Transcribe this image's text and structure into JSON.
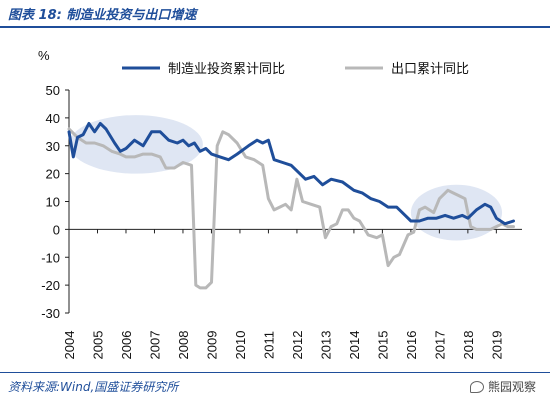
{
  "header": {
    "figure_title": "图表 18:  制造业投资与出口增速"
  },
  "footer": {
    "source": "资料来源:Wind,国盛证券研究所",
    "watermark": "熊园观察",
    "watermark_icon": "wechat-icon"
  },
  "chart_data": {
    "type": "line",
    "title": "",
    "xlabel": "",
    "ylabel": "%",
    "xlim": [
      2004.0,
      2019.9
    ],
    "ylim": [
      -30,
      50
    ],
    "y_ticks": [
      50,
      40,
      30,
      20,
      10,
      0,
      -10,
      -20,
      -30
    ],
    "x_ticks": [
      "2004",
      "2005",
      "2006",
      "2007",
      "2008",
      "2009",
      "2010",
      "2011",
      "2012",
      "2013",
      "2014",
      "2015",
      "2016",
      "2017",
      "2018",
      "2019"
    ],
    "grid": false,
    "legend_position": "top",
    "highlights": [
      {
        "x_range": [
          2004.0,
          2008.7
        ],
        "y_range": [
          20,
          41
        ]
      },
      {
        "x_range": [
          2016.0,
          2019.2
        ],
        "y_range": [
          -4,
          16
        ]
      }
    ],
    "series": [
      {
        "name": "制造业投资累计同比",
        "color": "#1f4e9a",
        "points": [
          [
            2004.0,
            35
          ],
          [
            2004.15,
            26
          ],
          [
            2004.3,
            33
          ],
          [
            2004.5,
            34
          ],
          [
            2004.7,
            38
          ],
          [
            2004.9,
            35
          ],
          [
            2005.1,
            38
          ],
          [
            2005.3,
            36
          ],
          [
            2005.6,
            31
          ],
          [
            2005.8,
            28
          ],
          [
            2006.0,
            29
          ],
          [
            2006.3,
            32
          ],
          [
            2006.6,
            30
          ],
          [
            2006.9,
            35
          ],
          [
            2007.2,
            35
          ],
          [
            2007.5,
            32
          ],
          [
            2007.8,
            31
          ],
          [
            2008.0,
            32
          ],
          [
            2008.2,
            30
          ],
          [
            2008.4,
            31
          ],
          [
            2008.6,
            28
          ],
          [
            2008.8,
            29
          ],
          [
            2009.0,
            27
          ],
          [
            2009.3,
            26
          ],
          [
            2009.6,
            25
          ],
          [
            2009.9,
            27
          ],
          [
            2010.3,
            30
          ],
          [
            2010.6,
            32
          ],
          [
            2010.8,
            31
          ],
          [
            2011.0,
            32
          ],
          [
            2011.2,
            25
          ],
          [
            2011.5,
            24
          ],
          [
            2011.8,
            23
          ],
          [
            2012.0,
            21
          ],
          [
            2012.3,
            18
          ],
          [
            2012.6,
            19
          ],
          [
            2012.9,
            16
          ],
          [
            2013.2,
            18
          ],
          [
            2013.6,
            17
          ],
          [
            2014.0,
            14
          ],
          [
            2014.3,
            13
          ],
          [
            2014.6,
            11
          ],
          [
            2014.9,
            10
          ],
          [
            2015.2,
            8
          ],
          [
            2015.5,
            8
          ],
          [
            2015.8,
            5
          ],
          [
            2016.0,
            3
          ],
          [
            2016.3,
            3
          ],
          [
            2016.6,
            4
          ],
          [
            2016.9,
            4
          ],
          [
            2017.2,
            5
          ],
          [
            2017.5,
            4
          ],
          [
            2017.8,
            5
          ],
          [
            2018.0,
            4
          ],
          [
            2018.3,
            7
          ],
          [
            2018.6,
            9
          ],
          [
            2018.8,
            8
          ],
          [
            2019.0,
            4
          ],
          [
            2019.3,
            2
          ],
          [
            2019.6,
            3
          ]
        ]
      },
      {
        "name": "出口累计同比",
        "color": "#b8b8b8",
        "points": [
          [
            2004.0,
            36
          ],
          [
            2004.3,
            33
          ],
          [
            2004.6,
            31
          ],
          [
            2004.9,
            31
          ],
          [
            2005.2,
            30
          ],
          [
            2005.5,
            28
          ],
          [
            2005.8,
            27
          ],
          [
            2006.0,
            26
          ],
          [
            2006.3,
            26
          ],
          [
            2006.6,
            27
          ],
          [
            2006.9,
            27
          ],
          [
            2007.2,
            26
          ],
          [
            2007.4,
            22
          ],
          [
            2007.7,
            22
          ],
          [
            2008.0,
            24
          ],
          [
            2008.3,
            23
          ],
          [
            2008.45,
            -20
          ],
          [
            2008.6,
            -21
          ],
          [
            2008.8,
            -21
          ],
          [
            2009.0,
            -19
          ],
          [
            2009.2,
            30
          ],
          [
            2009.4,
            35
          ],
          [
            2009.6,
            34
          ],
          [
            2009.9,
            31
          ],
          [
            2010.2,
            26
          ],
          [
            2010.5,
            25
          ],
          [
            2010.8,
            23
          ],
          [
            2011.0,
            11
          ],
          [
            2011.2,
            7
          ],
          [
            2011.4,
            8
          ],
          [
            2011.6,
            9
          ],
          [
            2011.8,
            7
          ],
          [
            2012.0,
            18
          ],
          [
            2012.2,
            10
          ],
          [
            2012.5,
            9
          ],
          [
            2012.8,
            8
          ],
          [
            2013.0,
            -3
          ],
          [
            2013.2,
            1
          ],
          [
            2013.4,
            2
          ],
          [
            2013.6,
            7
          ],
          [
            2013.8,
            7
          ],
          [
            2014.0,
            4
          ],
          [
            2014.2,
            3
          ],
          [
            2014.5,
            -2
          ],
          [
            2014.8,
            -3
          ],
          [
            2015.0,
            -2
          ],
          [
            2015.2,
            -13
          ],
          [
            2015.4,
            -10
          ],
          [
            2015.6,
            -9
          ],
          [
            2015.9,
            -2
          ],
          [
            2016.1,
            -1
          ],
          [
            2016.3,
            7
          ],
          [
            2016.5,
            8
          ],
          [
            2016.8,
            6
          ],
          [
            2017.0,
            11
          ],
          [
            2017.3,
            14
          ],
          [
            2017.5,
            13
          ],
          [
            2017.7,
            12
          ],
          [
            2017.9,
            11
          ],
          [
            2018.1,
            1
          ],
          [
            2018.3,
            0
          ],
          [
            2018.6,
            0
          ],
          [
            2018.8,
            0
          ],
          [
            2019.0,
            1
          ],
          [
            2019.2,
            2
          ],
          [
            2019.4,
            1
          ],
          [
            2019.6,
            1
          ]
        ]
      }
    ]
  }
}
